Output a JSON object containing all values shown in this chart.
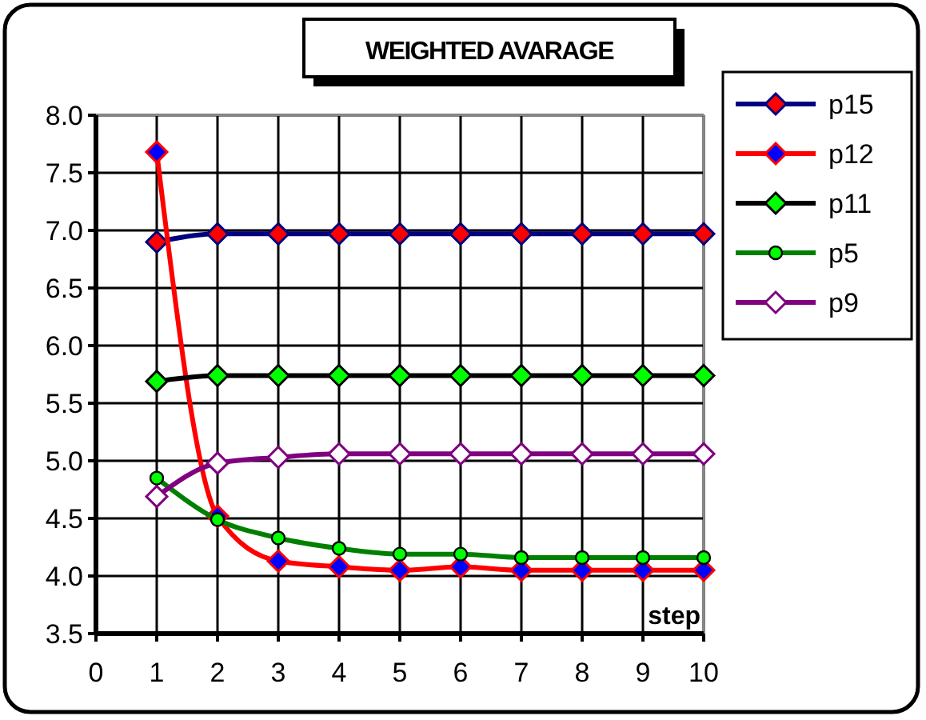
{
  "chart_data": {
    "type": "line",
    "title": "WEIGHTED AVARAGE",
    "xlabel": "step",
    "x": [
      1,
      2,
      3,
      4,
      5,
      6,
      7,
      8,
      9,
      10
    ],
    "series": [
      {
        "name": "p15",
        "color": "#000080",
        "marker": "diamond",
        "colors": [
          "#ff0000",
          "#ff0000",
          "#ff0000",
          "#ff0000",
          "#ff0000",
          "#ff0000",
          "#ff0000",
          "#ff0000",
          "#ff0000",
          "#ff0000"
        ],
        "values": [
          6.9,
          6.97,
          6.97,
          6.97,
          6.97,
          6.97,
          6.97,
          6.97,
          6.97,
          6.97
        ]
      },
      {
        "name": "p12",
        "color": "#ff0000",
        "marker": "diamond",
        "colors": [
          "#0000ff",
          "#0000ff",
          "#0000ff",
          "#0000ff",
          "#0000ff",
          "#0000ff",
          "#0000ff",
          "#0000ff",
          "#0000ff",
          "#0000ff"
        ],
        "values": [
          7.68,
          4.52,
          4.13,
          4.08,
          4.05,
          4.08,
          4.05,
          4.05,
          4.05,
          4.05
        ]
      },
      {
        "name": "p11",
        "color": "#000000",
        "marker": "diamond",
        "colors": [
          "#00ff00",
          "#00ff00",
          "#00ff00",
          "#00ff00",
          "#00ff00",
          "#00ff00",
          "#00ff00",
          "#00ff00",
          "#00ff00",
          "#00ff00"
        ],
        "values": [
          5.69,
          5.74,
          5.74,
          5.74,
          5.74,
          5.74,
          5.74,
          5.74,
          5.74,
          5.74
        ]
      },
      {
        "name": "p5",
        "color": "#008000",
        "marker": "circle",
        "colors": [
          "#00ff00",
          "#00ff00",
          "#00ff00",
          "#00ff00",
          "#00ff00",
          "#00ff00",
          "#00ff00",
          "#00ff00",
          "#00ff00",
          "#00ff00"
        ],
        "values": [
          4.85,
          4.49,
          4.33,
          4.24,
          4.19,
          4.19,
          4.16,
          4.16,
          4.16,
          4.16
        ]
      },
      {
        "name": "p9",
        "color": "#800080",
        "marker": "diamond",
        "colors": [
          "#ffffff",
          "#ffffff",
          "#ffffff",
          "#ffffff",
          "#ffffff",
          "#ffffff",
          "#ffffff",
          "#ffffff",
          "#ffffff",
          "#ffffff"
        ],
        "values": [
          4.69,
          4.98,
          5.03,
          5.06,
          5.06,
          5.06,
          5.06,
          5.06,
          5.06,
          5.06
        ]
      }
    ],
    "xlim": [
      0,
      10
    ],
    "xticks": [
      0,
      1,
      2,
      3,
      4,
      5,
      6,
      7,
      8,
      9,
      10
    ],
    "ylim": [
      3.5,
      8
    ],
    "yticks": [
      {
        "value": 3.5,
        "label": "3.5"
      },
      {
        "value": 4,
        "label": "4.0"
      },
      {
        "value": 4.5,
        "label": "4.5"
      },
      {
        "value": 5,
        "label": "5.0"
      },
      {
        "value": 5.5,
        "label": "5.5"
      },
      {
        "value": 6,
        "label": "6.0"
      },
      {
        "value": 6.5,
        "label": "6.5"
      },
      {
        "value": 7,
        "label": "7.0"
      },
      {
        "value": 7.5,
        "label": "7.5"
      },
      {
        "value": 8,
        "label": "8.0"
      }
    ],
    "grid": true,
    "legend": "right",
    "line_style": "solid"
  }
}
